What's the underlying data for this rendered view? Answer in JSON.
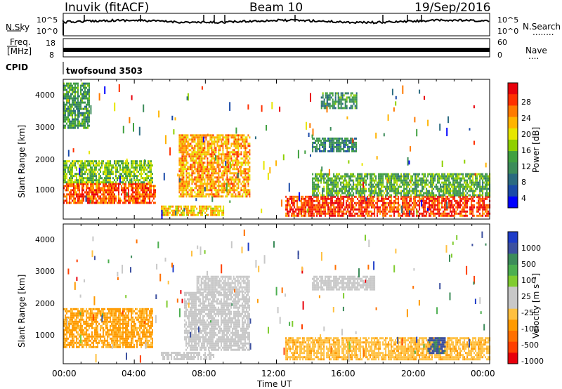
{
  "header": {
    "station": "Inuvik (fitACF)",
    "beam": "Beam 10",
    "date": "19/Sep/2016"
  },
  "panels": {
    "noise": {
      "left_label": "N.Sky",
      "right_label": "N.Search",
      "right_dots": "........",
      "left_ticks": [
        "10^5",
        "10^0"
      ],
      "right_ticks": [
        "10^5",
        "10^0"
      ]
    },
    "freq": {
      "left_label_1": "Freq.",
      "left_label_2": "[MHz]",
      "left_ticks": [
        "18",
        "8"
      ],
      "right_label": "Nave",
      "right_dots": "....",
      "right_ticks": [
        "60",
        "0"
      ]
    },
    "cpid": {
      "label": "CPID",
      "value": "twofsound 3503"
    }
  },
  "axes": {
    "y_label": "Slant Range [km]",
    "y_ticks": [
      "4000",
      "3000",
      "2000",
      "1000"
    ],
    "x_label": "Time UT",
    "x_ticks": [
      "00:00",
      "04:00",
      "08:00",
      "12:00",
      "16:00",
      "20:00",
      "00:00"
    ]
  },
  "colorbars": {
    "power": {
      "label": "Power [dB]",
      "ticks": [
        "28",
        "24",
        "20",
        "16",
        "12",
        "8",
        "4"
      ],
      "colors": [
        "#e8000b",
        "#ff3000",
        "#ff7a00",
        "#ffb400",
        "#e6e600",
        "#8fd000",
        "#40a040",
        "#3c8c5a",
        "#2a6a80",
        "#1a4aa8",
        "#0000ff"
      ]
    },
    "velocity": {
      "label": "Velocity [m s⁻¹]",
      "ticks": [
        "1000",
        "500",
        "100",
        "25",
        "-25",
        "-100",
        "-500",
        "-1000"
      ],
      "colors": [
        "#1e3cc8",
        "#3c50a0",
        "#3c8c5a",
        "#4caf50",
        "#80cc30",
        "#c8c8c8",
        "#c8c8c8",
        "#ffc040",
        "#ff9a00",
        "#ff7000",
        "#ff4000",
        "#e8000b"
      ]
    }
  },
  "chart_data": [
    {
      "type": "heatmap",
      "title": "Power",
      "xlabel": "Time UT",
      "ylabel": "Slant Range [km]",
      "xlim": [
        "00:00",
        "24:00"
      ],
      "ylim": [
        180,
        4500
      ],
      "colorbar": "Power [dB]",
      "colorbar_range": [
        0,
        30
      ],
      "regions": [
        {
          "t0": 0.0,
          "t1": 5.2,
          "r0": 700,
          "r1": 1300,
          "value": 26
        },
        {
          "t0": 0.0,
          "t1": 5.0,
          "r0": 1300,
          "r1": 2000,
          "value": 14
        },
        {
          "t0": 0.0,
          "t1": 1.5,
          "r0": 3000,
          "r1": 4400,
          "value": 10
        },
        {
          "t0": 6.5,
          "t1": 10.5,
          "r0": 900,
          "r1": 2800,
          "value": 22
        },
        {
          "t0": 5.5,
          "t1": 9.0,
          "r0": 300,
          "r1": 600,
          "value": 20
        },
        {
          "t0": 12.5,
          "t1": 24.0,
          "r0": 300,
          "r1": 900,
          "value": 27
        },
        {
          "t0": 14.0,
          "t1": 24.0,
          "r0": 900,
          "r1": 1600,
          "value": 12
        },
        {
          "t0": 14.0,
          "t1": 16.5,
          "r0": 2300,
          "r1": 2700,
          "value": 8
        },
        {
          "t0": 14.5,
          "t1": 16.5,
          "r0": 3600,
          "r1": 4100,
          "value": 10
        }
      ]
    },
    {
      "type": "heatmap",
      "title": "Velocity",
      "xlabel": "Time UT",
      "ylabel": "Slant Range [km]",
      "xlim": [
        "00:00",
        "24:00"
      ],
      "ylim": [
        180,
        4500
      ],
      "colorbar": "Velocity [m s⁻¹]",
      "colorbar_range": [
        -1000,
        1000
      ],
      "regions": [
        {
          "t0": 0.0,
          "t1": 5.0,
          "r0": 700,
          "r1": 1900,
          "value": -400
        },
        {
          "t0": 6.8,
          "t1": 10.5,
          "r0": 600,
          "r1": 2400,
          "value": 80
        },
        {
          "t0": 7.5,
          "t1": 10.5,
          "r0": 2400,
          "r1": 2900,
          "value": 0
        },
        {
          "t0": 5.5,
          "t1": 8.5,
          "r0": 300,
          "r1": 550,
          "value": 50
        },
        {
          "t0": 12.5,
          "t1": 24.0,
          "r0": 300,
          "r1": 1000,
          "value": -300
        },
        {
          "t0": 20.5,
          "t1": 21.5,
          "r0": 500,
          "r1": 1000,
          "value": 800
        },
        {
          "t0": 14.0,
          "t1": 17.5,
          "r0": 2500,
          "r1": 2900,
          "value": 0
        }
      ]
    }
  ]
}
